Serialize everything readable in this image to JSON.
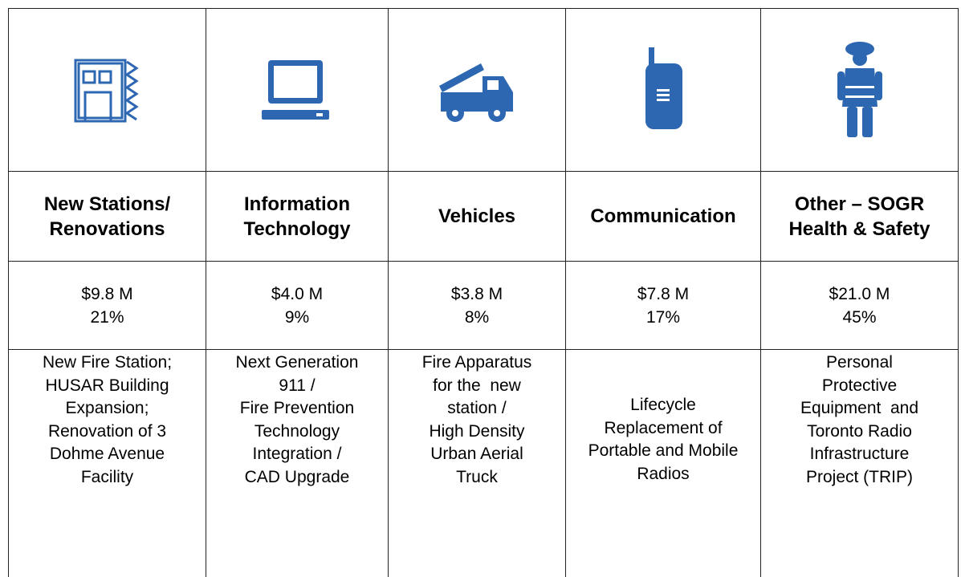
{
  "columns": [
    {
      "title": [
        "New Stations/",
        "Renovations"
      ],
      "amount": "$9.8 M",
      "share": "21%",
      "description": [
        "New Fire Station;",
        "HUSAR Building",
        "Expansion;",
        "Renovation of 3",
        "Dohme Avenue",
        "Facility"
      ]
    },
    {
      "title": [
        "Information",
        "Technology"
      ],
      "amount": "$4.0 M",
      "share": "9%",
      "description": [
        "Next Generation",
        "911 /",
        "Fire Prevention",
        "Technology",
        "Integration /",
        "CAD Upgrade"
      ]
    },
    {
      "title": [
        "Vehicles"
      ],
      "amount": "$3.8 M",
      "share": "8%",
      "description": [
        "Fire Apparatus",
        "for the  new",
        "station /",
        "High Density",
        "Urban Aerial",
        "Truck"
      ]
    },
    {
      "title": [
        "Communication"
      ],
      "amount": "$7.8 M",
      "share": "17%",
      "description": [
        "Lifecycle",
        "Replacement of",
        "Portable and Mobile",
        "Radios"
      ]
    },
    {
      "title": [
        "Other – SOGR",
        "Health & Safety"
      ],
      "amount": "$21.0 M",
      "share": "45%",
      "description": [
        "Personal",
        "Protective",
        "Equipment  and",
        "Toronto Radio",
        "Infrastructure",
        "Project (TRIP)"
      ]
    }
  ]
}
